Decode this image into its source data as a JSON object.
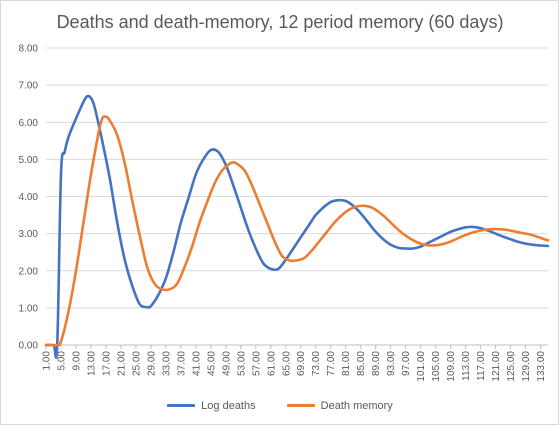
{
  "chart_data": {
    "type": "line",
    "title": "Deaths and death-memory, 12 period memory (60 days)",
    "xlabel": "",
    "ylabel": "",
    "ylim": [
      0,
      8
    ],
    "yticks": [
      "0.00",
      "1.00",
      "2.00",
      "3.00",
      "4.00",
      "5.00",
      "6.00",
      "7.00",
      "8.00"
    ],
    "xticks": [
      "1.00",
      "5.00",
      "9.00",
      "13.00",
      "17.00",
      "21.00",
      "25.00",
      "29.00",
      "33.00",
      "37.00",
      "41.00",
      "45.00",
      "49.00",
      "53.00",
      "57.00",
      "61.00",
      "65.00",
      "69.00",
      "73.00",
      "77.00",
      "81.00",
      "85.00",
      "89.00",
      "93.00",
      "97.00",
      "101.00",
      "105.00",
      "109.00",
      "113.00",
      "117.00",
      "121.00",
      "125.00",
      "129.00",
      "133.00"
    ],
    "xrange": [
      1,
      135
    ],
    "grid": true,
    "legend_position": "bottom",
    "series": [
      {
        "name": "Log deaths",
        "color": "#4472c4",
        "points": [
          [
            1,
            0
          ],
          [
            3,
            0
          ],
          [
            4,
            0
          ],
          [
            5,
            4.6
          ],
          [
            6,
            5.2
          ],
          [
            7,
            5.6
          ],
          [
            9,
            6.1
          ],
          [
            11,
            6.55
          ],
          [
            12,
            6.7
          ],
          [
            13,
            6.65
          ],
          [
            14,
            6.4
          ],
          [
            16,
            5.5
          ],
          [
            18,
            4.5
          ],
          [
            20,
            3.3
          ],
          [
            22,
            2.3
          ],
          [
            24,
            1.6
          ],
          [
            26,
            1.1
          ],
          [
            28,
            1.02
          ],
          [
            29,
            1.05
          ],
          [
            31,
            1.35
          ],
          [
            33,
            1.8
          ],
          [
            35,
            2.5
          ],
          [
            37,
            3.3
          ],
          [
            39,
            3.95
          ],
          [
            41,
            4.6
          ],
          [
            43,
            5.0
          ],
          [
            45,
            5.25
          ],
          [
            47,
            5.2
          ],
          [
            49,
            4.85
          ],
          [
            51,
            4.3
          ],
          [
            53,
            3.7
          ],
          [
            55,
            3.1
          ],
          [
            57,
            2.6
          ],
          [
            59,
            2.2
          ],
          [
            61,
            2.05
          ],
          [
            63,
            2.05
          ],
          [
            65,
            2.3
          ],
          [
            67,
            2.6
          ],
          [
            69,
            2.9
          ],
          [
            71,
            3.2
          ],
          [
            73,
            3.5
          ],
          [
            75,
            3.7
          ],
          [
            77,
            3.85
          ],
          [
            79,
            3.9
          ],
          [
            81,
            3.88
          ],
          [
            83,
            3.75
          ],
          [
            85,
            3.55
          ],
          [
            87,
            3.3
          ],
          [
            89,
            3.05
          ],
          [
            91,
            2.85
          ],
          [
            93,
            2.7
          ],
          [
            95,
            2.62
          ],
          [
            97,
            2.6
          ],
          [
            99,
            2.6
          ],
          [
            101,
            2.65
          ],
          [
            103,
            2.75
          ],
          [
            105,
            2.85
          ],
          [
            107,
            2.95
          ],
          [
            109,
            3.05
          ],
          [
            111,
            3.12
          ],
          [
            113,
            3.17
          ],
          [
            115,
            3.18
          ],
          [
            117,
            3.15
          ],
          [
            119,
            3.08
          ],
          [
            121,
            3.0
          ],
          [
            123,
            2.92
          ],
          [
            125,
            2.85
          ],
          [
            127,
            2.78
          ],
          [
            129,
            2.73
          ],
          [
            131,
            2.7
          ],
          [
            133,
            2.68
          ],
          [
            135,
            2.67
          ]
        ]
      },
      {
        "name": "Death memory",
        "color": "#ed7d31",
        "points": [
          [
            1,
            0
          ],
          [
            4,
            0
          ],
          [
            5,
            0.1
          ],
          [
            7,
            0.9
          ],
          [
            9,
            2.0
          ],
          [
            11,
            3.3
          ],
          [
            13,
            4.6
          ],
          [
            15,
            5.7
          ],
          [
            16,
            6.1
          ],
          [
            17,
            6.15
          ],
          [
            18,
            6.05
          ],
          [
            20,
            5.65
          ],
          [
            22,
            4.9
          ],
          [
            24,
            3.9
          ],
          [
            26,
            2.95
          ],
          [
            28,
            2.1
          ],
          [
            30,
            1.65
          ],
          [
            32,
            1.5
          ],
          [
            34,
            1.5
          ],
          [
            36,
            1.65
          ],
          [
            38,
            2.1
          ],
          [
            40,
            2.65
          ],
          [
            42,
            3.3
          ],
          [
            44,
            3.85
          ],
          [
            46,
            4.35
          ],
          [
            48,
            4.7
          ],
          [
            50,
            4.88
          ],
          [
            51,
            4.92
          ],
          [
            52,
            4.88
          ],
          [
            54,
            4.7
          ],
          [
            56,
            4.3
          ],
          [
            58,
            3.8
          ],
          [
            60,
            3.3
          ],
          [
            62,
            2.8
          ],
          [
            64,
            2.4
          ],
          [
            66,
            2.28
          ],
          [
            68,
            2.28
          ],
          [
            70,
            2.35
          ],
          [
            72,
            2.55
          ],
          [
            74,
            2.8
          ],
          [
            76,
            3.05
          ],
          [
            78,
            3.3
          ],
          [
            80,
            3.5
          ],
          [
            82,
            3.65
          ],
          [
            84,
            3.73
          ],
          [
            86,
            3.75
          ],
          [
            88,
            3.7
          ],
          [
            90,
            3.57
          ],
          [
            92,
            3.4
          ],
          [
            94,
            3.2
          ],
          [
            96,
            3.02
          ],
          [
            98,
            2.88
          ],
          [
            100,
            2.77
          ],
          [
            102,
            2.7
          ],
          [
            104,
            2.68
          ],
          [
            106,
            2.7
          ],
          [
            108,
            2.75
          ],
          [
            110,
            2.83
          ],
          [
            112,
            2.92
          ],
          [
            114,
            3.0
          ],
          [
            116,
            3.06
          ],
          [
            118,
            3.1
          ],
          [
            120,
            3.12
          ],
          [
            122,
            3.12
          ],
          [
            124,
            3.1
          ],
          [
            126,
            3.06
          ],
          [
            128,
            3.02
          ],
          [
            130,
            2.98
          ],
          [
            132,
            2.92
          ],
          [
            134,
            2.85
          ],
          [
            135,
            2.82
          ]
        ]
      }
    ]
  }
}
